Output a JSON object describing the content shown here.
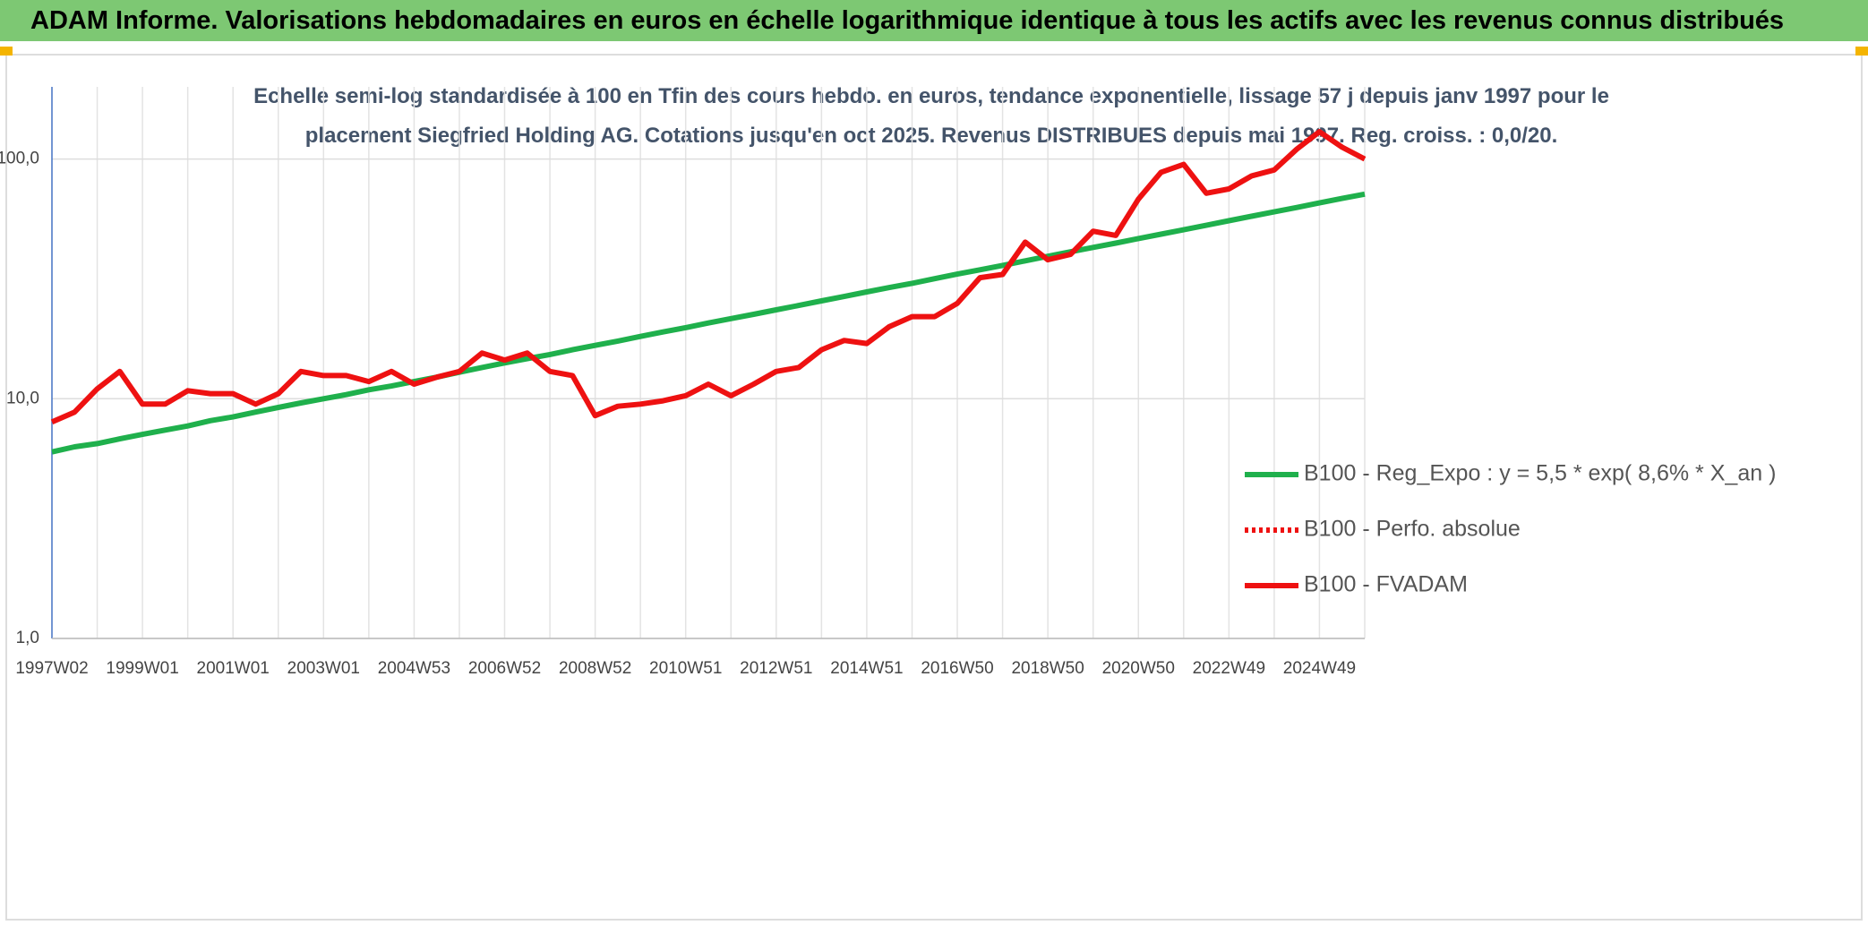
{
  "header": {
    "title": "ADAM Informe. Valorisations hebdomadaires en euros en échelle logarithmique identique à tous les actifs avec les revenus connus distribués"
  },
  "chart_data": {
    "type": "line",
    "subtitle": "Echelle semi-log standardisée à 100 en Tfin des cours hebdo. en euros, tendance exponentielle, lissage 57 j depuis janv 1997 pour le placement Siegfried Holding AG. Cotations jusqu'en oct 2025. Revenus DISTRIBUES depuis mai 1997. Reg. croiss. : 0,0/20.",
    "categories": [
      "1997W02",
      null,
      null,
      null,
      "1999W01",
      null,
      null,
      null,
      "2001W01",
      null,
      null,
      null,
      "2003W01",
      null,
      null,
      null,
      "2004W53",
      null,
      null,
      null,
      "2006W52",
      null,
      null,
      null,
      "2008W52",
      null,
      null,
      null,
      "2010W51",
      null,
      null,
      null,
      "2012W51",
      null,
      null,
      null,
      "2014W51",
      null,
      null,
      null,
      "2016W50",
      null,
      null,
      null,
      "2018W50",
      null,
      null,
      null,
      "2020W50",
      null,
      null,
      null,
      "2022W49",
      null,
      null,
      null,
      "2024W49",
      null,
      null
    ],
    "series": [
      {
        "name": "B100 - Reg_Expo : y = 5,5 * exp( 8,6% *  X_an )",
        "color": "#1fb04c",
        "style": "solid",
        "values": [
          6.0,
          6.3,
          6.5,
          6.8,
          7.1,
          7.4,
          7.7,
          8.1,
          8.4,
          8.8,
          9.2,
          9.6,
          10.0,
          10.4,
          10.9,
          11.3,
          11.8,
          12.3,
          12.9,
          13.5,
          14.1,
          14.7,
          15.3,
          16.0,
          16.7,
          17.4,
          18.2,
          19.0,
          19.8,
          20.7,
          21.6,
          22.5,
          23.5,
          24.5,
          25.6,
          26.7,
          27.9,
          29.1,
          30.3,
          31.7,
          33.1,
          34.5,
          36.0,
          37.6,
          39.3,
          41.0,
          42.8,
          44.6,
          46.6,
          48.6,
          50.7,
          52.9,
          55.3,
          57.7,
          60.2,
          62.8,
          65.6,
          68.5,
          71.4
        ]
      },
      {
        "name": "B100 - Perfo. absolue",
        "color": "#ee1111",
        "style": "dotted",
        "values": [
          null,
          null,
          null,
          null,
          null,
          null,
          null,
          null,
          null,
          null,
          null,
          null,
          null,
          null,
          null,
          null,
          null,
          null,
          null,
          null,
          null,
          null,
          null,
          null,
          null,
          null,
          null,
          null,
          null,
          null,
          null,
          null,
          null,
          null,
          null,
          null,
          null,
          null,
          null,
          null,
          null,
          null,
          null,
          null,
          null,
          null,
          null,
          null,
          null,
          null,
          null,
          null,
          null,
          null,
          null,
          null,
          null,
          null,
          null
        ]
      },
      {
        "name": "B100 - FVADAM",
        "color": "#ee1111",
        "style": "solid",
        "values": [
          8.0,
          8.8,
          11,
          13,
          9.5,
          9.5,
          10.8,
          10.5,
          10.5,
          9.5,
          10.5,
          13,
          12.5,
          12.5,
          11.8,
          13,
          11.5,
          12.3,
          13,
          15.5,
          14.5,
          15.5,
          13,
          12.5,
          8.5,
          9.3,
          9.5,
          9.8,
          10.3,
          11.5,
          10.3,
          11.5,
          13,
          13.5,
          16,
          17.5,
          17,
          20,
          22,
          22,
          25,
          32,
          33,
          45,
          38,
          40,
          50,
          48,
          68,
          88,
          95,
          72,
          75,
          85,
          90,
          110,
          130,
          112,
          100
        ]
      }
    ],
    "log_y": true,
    "ylim": [
      1,
      200
    ],
    "yticks": [
      {
        "value": 1,
        "label": "1,0"
      },
      {
        "value": 10,
        "label": "10,0"
      },
      {
        "value": 100,
        "label": "100,0"
      }
    ],
    "grid": true,
    "legend": "lower-right"
  }
}
